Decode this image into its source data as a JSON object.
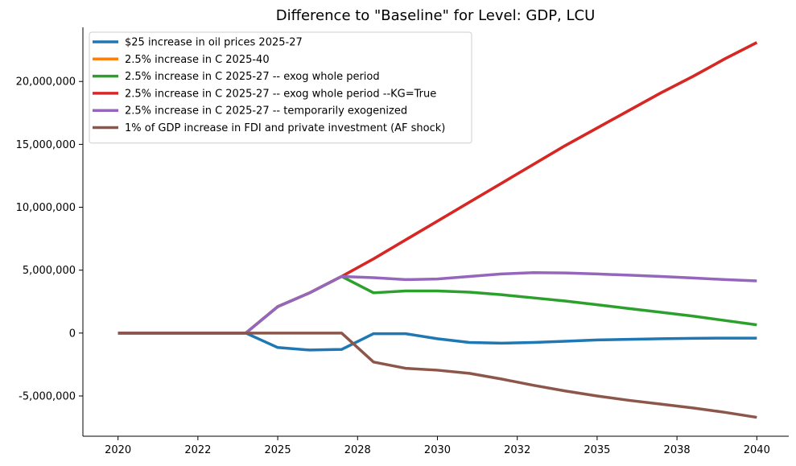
{
  "chart_data": {
    "type": "line",
    "title": "Difference to \"Baseline\" for Level: GDP, LCU",
    "xlabel": "",
    "ylabel": "",
    "xlim": [
      2018.9,
      2041.0
    ],
    "ylim": [
      -8200000,
      24300000
    ],
    "x_ticks": [
      2020,
      2022.5,
      2025,
      2027.5,
      2030,
      2032.5,
      2035,
      2037.5,
      2040
    ],
    "x_tick_labels": [
      "2020",
      "2022",
      "2025",
      "2028",
      "2030",
      "2032",
      "2035",
      "2038",
      "2040"
    ],
    "y_ticks": [
      -5000000,
      0,
      5000000,
      10000000,
      15000000,
      20000000
    ],
    "y_tick_labels": [
      "-5,000,000",
      "0",
      "5,000,000",
      "10,000,000",
      "15,000,000",
      "20,000,000"
    ],
    "legend_position": "top-left",
    "grid": false,
    "x": [
      2020,
      2021,
      2022,
      2023,
      2024,
      2025,
      2026,
      2027,
      2028,
      2029,
      2030,
      2031,
      2032,
      2033,
      2034,
      2035,
      2036,
      2037,
      2038,
      2039,
      2040
    ],
    "series": [
      {
        "name": "$25 increase in oil prices 2025-27",
        "color": "#1f77b4",
        "values": [
          0,
          0,
          0,
          0,
          0,
          -1150000,
          -1350000,
          -1300000,
          -50000,
          -50000,
          -450000,
          -750000,
          -800000,
          -750000,
          -650000,
          -550000,
          -500000,
          -450000,
          -420000,
          -400000,
          -400000
        ]
      },
      {
        "name": "2.5% increase in C 2025-40",
        "color": "#ff7f0e",
        "values": [
          0,
          0,
          0,
          0,
          0,
          2100000,
          3200000,
          4500000,
          5900000,
          7400000,
          8900000,
          10400000,
          11900000,
          13400000,
          14900000,
          16300000,
          17700000,
          19100000,
          20400000,
          21800000,
          23100000
        ]
      },
      {
        "name": "2.5% increase in C 2025-27 -- exog whole period",
        "color": "#2ca02c",
        "values": [
          0,
          0,
          0,
          0,
          0,
          2100000,
          3200000,
          4500000,
          3200000,
          3350000,
          3350000,
          3250000,
          3050000,
          2800000,
          2550000,
          2250000,
          1950000,
          1650000,
          1350000,
          1000000,
          650000
        ]
      },
      {
        "name": "2.5% increase in C 2025-27 -- exog whole period --KG=True",
        "color": "#d62728",
        "values": [
          0,
          0,
          0,
          0,
          0,
          2100000,
          3200000,
          4500000,
          5900000,
          7400000,
          8900000,
          10400000,
          11900000,
          13400000,
          14900000,
          16300000,
          17700000,
          19100000,
          20400000,
          21800000,
          23100000
        ]
      },
      {
        "name": "2.5% increase in C 2025-27 -- temporarily exogenized",
        "color": "#9467bd",
        "values": [
          0,
          0,
          0,
          0,
          0,
          2100000,
          3200000,
          4500000,
          4400000,
          4250000,
          4300000,
          4500000,
          4700000,
          4800000,
          4780000,
          4700000,
          4600000,
          4500000,
          4380000,
          4250000,
          4150000
        ]
      },
      {
        "name": "1% of GDP increase in FDI and private investment (AF shock)",
        "color": "#8c564b",
        "values": [
          0,
          0,
          0,
          0,
          0,
          0,
          0,
          0,
          -2300000,
          -2800000,
          -2950000,
          -3200000,
          -3650000,
          -4150000,
          -4600000,
          -5000000,
          -5350000,
          -5650000,
          -5950000,
          -6300000,
          -6700000
        ]
      }
    ]
  }
}
